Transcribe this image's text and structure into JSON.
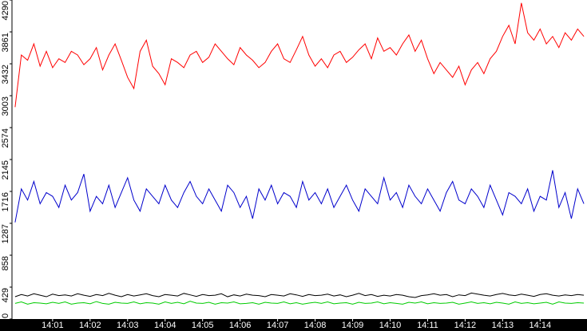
{
  "chart_data": {
    "type": "line",
    "categories": [
      null,
      null,
      null,
      null,
      null,
      null,
      "14:01",
      null,
      null,
      null,
      null,
      null,
      "14:02",
      null,
      null,
      null,
      null,
      null,
      "14:03",
      null,
      null,
      null,
      null,
      null,
      "14:04",
      null,
      null,
      null,
      null,
      null,
      "14:05",
      null,
      null,
      null,
      null,
      null,
      "14:06",
      null,
      null,
      null,
      null,
      null,
      "14:07",
      null,
      null,
      null,
      null,
      null,
      "14:08",
      null,
      null,
      null,
      null,
      null,
      "14:09",
      null,
      null,
      null,
      null,
      null,
      "14:10",
      null,
      null,
      null,
      null,
      null,
      "14:11",
      null,
      null,
      null,
      null,
      null,
      "14:12",
      null,
      null,
      null,
      null,
      null,
      "14:13",
      null,
      null,
      null,
      null,
      null,
      "14:14",
      null,
      null,
      null,
      null,
      null,
      null,
      null
    ],
    "series": [
      {
        "color": "#ff0000",
        "values": [
          2850,
          3550,
          3480,
          3700,
          3400,
          3600,
          3380,
          3500,
          3450,
          3600,
          3550,
          3420,
          3500,
          3650,
          3350,
          3550,
          3700,
          3480,
          3250,
          3100,
          3600,
          3750,
          3400,
          3300,
          3150,
          3500,
          3450,
          3380,
          3550,
          3600,
          3450,
          3520,
          3700,
          3600,
          3500,
          3420,
          3650,
          3550,
          3480,
          3380,
          3450,
          3600,
          3700,
          3500,
          3450,
          3620,
          3800,
          3550,
          3400,
          3500,
          3380,
          3550,
          3600,
          3450,
          3520,
          3620,
          3700,
          3500,
          3780,
          3600,
          3650,
          3550,
          3700,
          3820,
          3600,
          3750,
          3500,
          3300,
          3450,
          3350,
          3250,
          3400,
          3150,
          3350,
          3450,
          3300,
          3500,
          3600,
          3800,
          3950,
          3700,
          4250,
          3850,
          3750,
          3900,
          3700,
          3800,
          3650,
          3850,
          3750,
          3900,
          3800
        ]
      },
      {
        "color": "#0000cc",
        "values": [
          1300,
          1750,
          1600,
          1850,
          1550,
          1700,
          1650,
          1500,
          1800,
          1600,
          1700,
          1950,
          1450,
          1650,
          1550,
          1800,
          1500,
          1700,
          1900,
          1600,
          1450,
          1750,
          1650,
          1550,
          1800,
          1600,
          1500,
          1700,
          1850,
          1650,
          1550,
          1750,
          1600,
          1450,
          1800,
          1700,
          1500,
          1650,
          1350,
          1750,
          1600,
          1800,
          1550,
          1700,
          1650,
          1500,
          1850,
          1600,
          1700,
          1550,
          1750,
          1500,
          1650,
          1800,
          1600,
          1450,
          1750,
          1650,
          1550,
          1900,
          1600,
          1700,
          1500,
          1800,
          1650,
          1550,
          1750,
          1600,
          1450,
          1700,
          1850,
          1600,
          1550,
          1750,
          1650,
          1500,
          1800,
          1600,
          1400,
          1700,
          1650,
          1550,
          1750,
          1450,
          1650,
          1600,
          2000,
          1500,
          1700,
          1350,
          1750,
          1550
        ]
      },
      {
        "color": "#000000",
        "values": [
          300,
          330,
          310,
          340,
          320,
          300,
          335,
          315,
          325,
          310,
          340,
          320,
          305,
          330,
          315,
          345,
          320,
          300,
          330,
          310,
          325,
          340,
          315,
          300,
          330,
          320,
          310,
          345,
          325,
          305,
          330,
          315,
          320,
          340,
          300,
          325,
          310,
          335,
          320,
          315,
          300,
          330,
          320,
          310,
          340,
          325,
          305,
          330,
          315,
          320,
          335,
          310,
          325,
          300,
          320,
          345,
          315,
          330,
          305,
          320,
          310,
          330,
          320,
          300,
          290,
          315,
          325,
          340,
          320,
          330,
          300,
          325,
          315,
          350,
          335,
          320,
          310,
          330,
          345,
          325,
          315,
          335,
          320,
          305,
          330,
          340,
          320,
          310,
          325,
          315,
          330,
          320
        ]
      },
      {
        "color": "#00cc00",
        "values": [
          210,
          230,
          200,
          220,
          215,
          205,
          225,
          210,
          230,
          200,
          215,
          220,
          205,
          235,
          210,
          200,
          225,
          215,
          210,
          230,
          205,
          220,
          215,
          200,
          230,
          210,
          225,
          205,
          240,
          215,
          210,
          225,
          200,
          220,
          215,
          230,
          205,
          210,
          220,
          200,
          225,
          215,
          210,
          230,
          205,
          220,
          200,
          215,
          225,
          210,
          230,
          205,
          215,
          220,
          200,
          225,
          210,
          215,
          230,
          205,
          220,
          210,
          200,
          225,
          215,
          230,
          205,
          220,
          210,
          215,
          225,
          200,
          215,
          230,
          210,
          220,
          205,
          225,
          215,
          200,
          230,
          210,
          220,
          205,
          215,
          225,
          200,
          230,
          215,
          210,
          220,
          215
        ]
      }
    ],
    "ylim": [
      0,
      4290
    ],
    "yticks": [
      0,
      429,
      858,
      1287,
      1716,
      2145,
      2574,
      3003,
      3432,
      3861,
      4290
    ]
  }
}
